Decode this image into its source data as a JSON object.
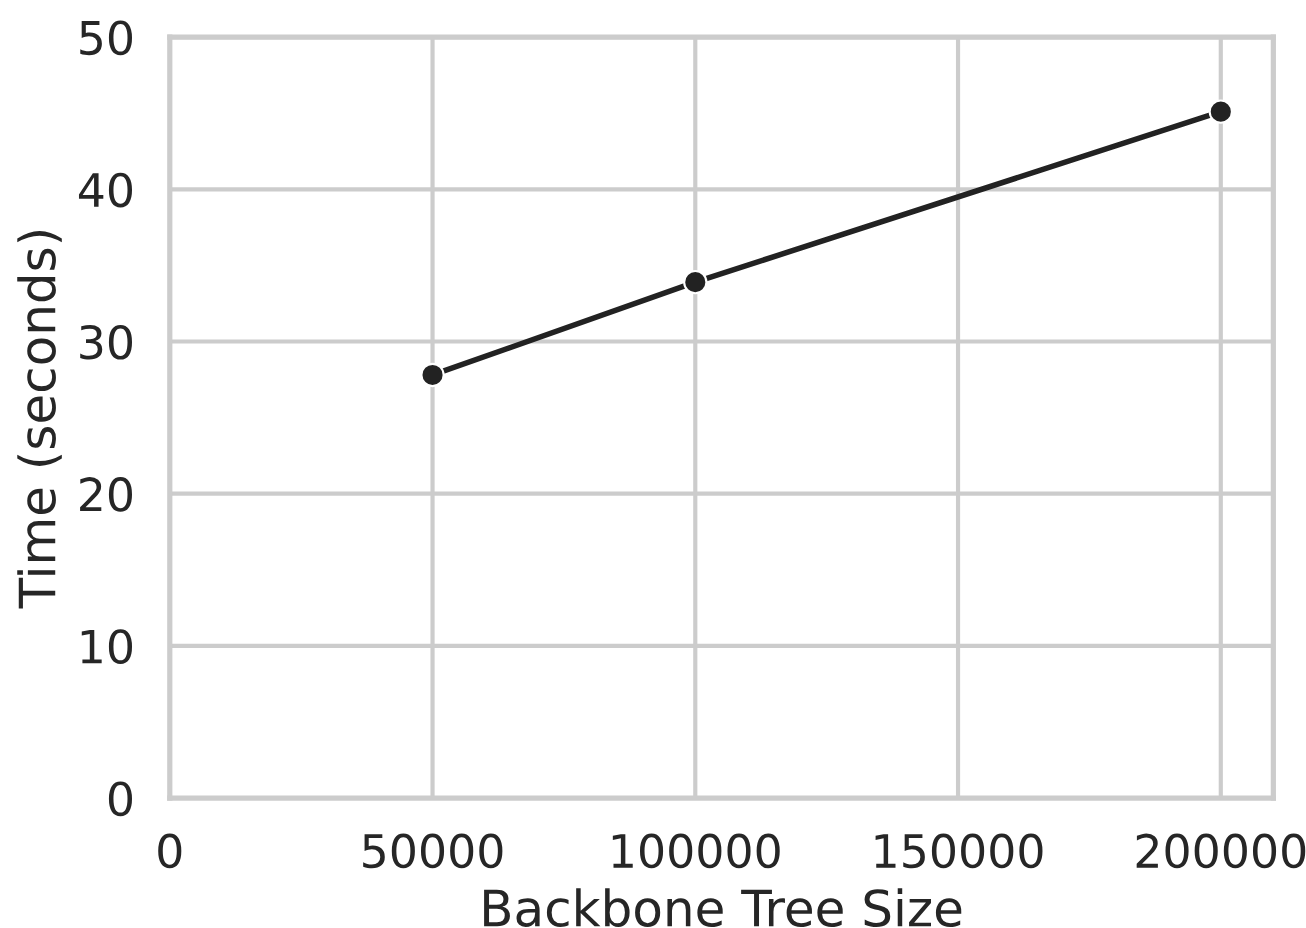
{
  "chart_data": {
    "type": "line",
    "xlabel": "Backbone Tree Size",
    "ylabel": "Time (seconds)",
    "x": [
      50000,
      100000,
      200000
    ],
    "series": [
      {
        "color": "#222222",
        "values": [
          27.8,
          33.9,
          45.1
        ]
      }
    ],
    "xlim": [
      0,
      210000
    ],
    "xticks": [
      0,
      50000,
      100000,
      150000,
      200000
    ],
    "ylim": [
      0,
      50
    ],
    "yticks": [
      0,
      10,
      20,
      30,
      40,
      50
    ],
    "grid": true,
    "marker": "circle",
    "line_style": "solid"
  }
}
